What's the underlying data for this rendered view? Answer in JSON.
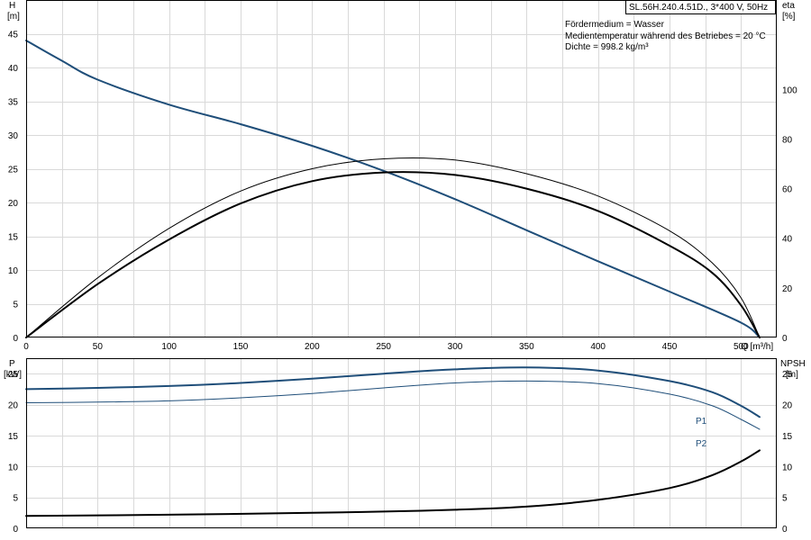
{
  "chart_data": [
    {
      "type": "line",
      "title": "",
      "xlabel": "Q [m³/h]",
      "ylabel": "H",
      "ylabel_unit": "[m]",
      "y2label": "eta",
      "y2label_unit": "[%]",
      "grid": true,
      "xlim": [
        0,
        525
      ],
      "ylim": [
        0,
        50
      ],
      "y2lim": [
        0,
        136
      ],
      "x_ticks": [
        0,
        50,
        100,
        150,
        200,
        250,
        300,
        350,
        400,
        450,
        500
      ],
      "y_ticks": [
        0,
        5,
        10,
        15,
        20,
        25,
        30,
        35,
        40,
        45
      ],
      "y2_ticks": [
        0,
        20,
        40,
        60,
        80,
        100
      ],
      "info_box": {
        "model": "SL.56H.240.4.51D., 3*400 V, 50Hz",
        "lines": [
          "Fördermedium = Wasser",
          "Medientemperatur während des Betriebes = 20 °C",
          "Dichte = 998.2 kg/m³"
        ]
      },
      "series": [
        {
          "axis": "left",
          "color": "#1f4e79",
          "width": 2,
          "x": [
            0,
            25,
            50,
            100,
            150,
            200,
            250,
            300,
            350,
            400,
            450,
            500,
            513
          ],
          "values": [
            44,
            41,
            38.2,
            34.5,
            31.6,
            28.4,
            24.7,
            20.5,
            15.9,
            11.3,
            6.8,
            2.2,
            0
          ]
        },
        {
          "axis": "right",
          "color": "#000000",
          "width": 1,
          "x": [
            0,
            50,
            100,
            150,
            200,
            250,
            300,
            350,
            400,
            450,
            480,
            500,
            513
          ],
          "values": [
            0,
            24,
            44,
            59,
            68,
            72,
            71.5,
            66,
            57,
            43,
            30,
            16,
            0
          ]
        },
        {
          "axis": "right",
          "color": "#000000",
          "width": 2,
          "x": [
            0,
            50,
            100,
            150,
            200,
            250,
            300,
            350,
            400,
            450,
            480,
            500,
            513
          ],
          "values": [
            0,
            21.5,
            39.5,
            54,
            63,
            66.5,
            65.5,
            60,
            51,
            37,
            26,
            13,
            0
          ]
        }
      ]
    },
    {
      "type": "line",
      "title": "",
      "xlabel": "",
      "ylabel": "P",
      "ylabel_unit": "[kW]",
      "y2label": "NPSH",
      "y2label_unit": "[m]",
      "grid": true,
      "xlim": [
        0,
        525
      ],
      "ylim": [
        0,
        27.5
      ],
      "y2lim": [
        0,
        27.5
      ],
      "y_ticks": [
        0,
        5,
        10,
        15,
        20,
        25
      ],
      "y2_ticks": [
        0,
        5,
        10,
        15,
        20,
        25
      ],
      "series": [
        {
          "name": "P1",
          "axis": "left",
          "color": "#1f4e79",
          "width": 2,
          "x": [
            0,
            50,
            100,
            150,
            200,
            250,
            300,
            350,
            400,
            450,
            480,
            500,
            513
          ],
          "values": [
            22.5,
            22.7,
            23.0,
            23.5,
            24.2,
            25.0,
            25.7,
            26.0,
            25.5,
            23.8,
            22.0,
            19.8,
            18.0
          ]
        },
        {
          "name": "P2",
          "axis": "left",
          "color": "#1f4e79",
          "width": 1,
          "x": [
            0,
            50,
            100,
            150,
            200,
            250,
            300,
            350,
            400,
            450,
            480,
            500,
            513
          ],
          "values": [
            20.3,
            20.4,
            20.6,
            21.1,
            21.8,
            22.7,
            23.5,
            23.8,
            23.4,
            21.7,
            19.8,
            17.6,
            16.0
          ]
        },
        {
          "name": "",
          "axis": "right",
          "color": "#000000",
          "width": 2,
          "x": [
            0,
            100,
            200,
            250,
            300,
            350,
            400,
            450,
            480,
            500,
            513
          ],
          "values": [
            2.0,
            2.2,
            2.5,
            2.7,
            3.0,
            3.5,
            4.6,
            6.5,
            8.6,
            10.8,
            12.6
          ]
        }
      ]
    }
  ]
}
